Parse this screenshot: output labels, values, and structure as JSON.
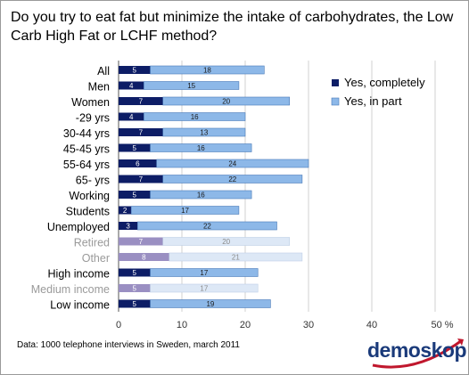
{
  "title": "Do you try to eat fat but minimize the intake of carbohydrates, the Low Carb High Fat or LCHF method?",
  "source_note": "Data: 1000 telephone interviews in Sweden, march 2011",
  "logo_text": "demoskop",
  "chart_data": {
    "type": "bar",
    "orientation": "horizontal",
    "stacked": true,
    "title": "Do you try to eat fat but minimize the intake of carbohydrates, the Low Carb High Fat or LCHF method?",
    "categories": [
      "All",
      "Men",
      "Women",
      "-29 yrs",
      "30-44 yrs",
      "45-45 yrs",
      "55-64 yrs",
      "65- yrs",
      "Working",
      "Students",
      "Unemployed",
      "Retired",
      "Other",
      "High income",
      "Medium income",
      "Low income"
    ],
    "faded": [
      false,
      false,
      false,
      false,
      false,
      false,
      false,
      false,
      false,
      false,
      false,
      true,
      true,
      false,
      true,
      false
    ],
    "series": [
      {
        "name": "Yes, completely",
        "values": [
          5,
          4,
          7,
          4,
          7,
          5,
          6,
          7,
          5,
          2,
          3,
          7,
          8,
          5,
          5,
          5
        ],
        "color": "#0d1d66",
        "faded_color": "#9a8fc2"
      },
      {
        "name": "Yes, in part",
        "values": [
          18,
          15,
          20,
          16,
          13,
          16,
          24,
          22,
          16,
          17,
          22,
          20,
          21,
          17,
          17,
          19
        ],
        "color": "#8db8e8",
        "faded_color": "#dde8f6"
      }
    ],
    "xlim": [
      0,
      50
    ],
    "xticks": [
      "0",
      "10",
      "20",
      "30",
      "40",
      "50 %"
    ],
    "legend_position": "right",
    "grid": true
  }
}
